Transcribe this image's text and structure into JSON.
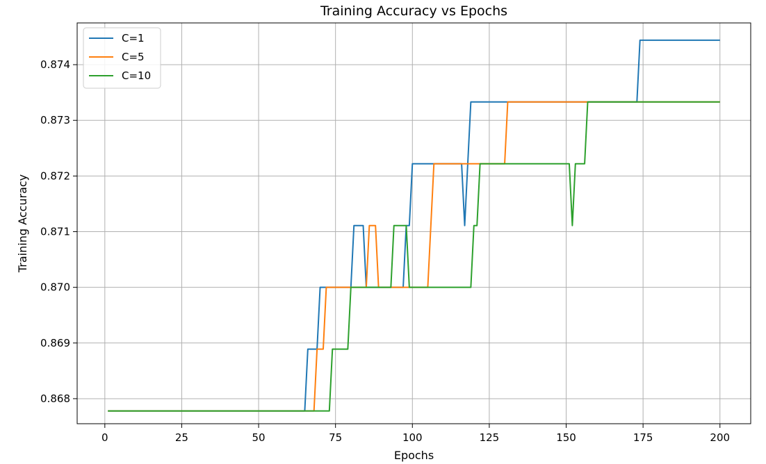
{
  "chart_data": {
    "type": "line",
    "title": "Training Accuracy vs Epochs",
    "xlabel": "Epochs",
    "ylabel": "Training Accuracy",
    "xlim": [
      -9,
      210
    ],
    "ylim": [
      0.86755,
      0.87475
    ],
    "xticks": [
      0,
      25,
      50,
      75,
      100,
      125,
      150,
      175,
      200
    ],
    "yticks": [
      0.868,
      0.869,
      0.87,
      0.871,
      0.872,
      0.873,
      0.874
    ],
    "ytick_labels": [
      "0.868",
      "0.869",
      "0.870",
      "0.871",
      "0.872",
      "0.873",
      "0.874"
    ],
    "grid": true,
    "legend_position": "top-left",
    "series": [
      {
        "name": "C=1",
        "color": "#1f77b4",
        "points": [
          [
            1,
            0.86778
          ],
          [
            65,
            0.86778
          ],
          [
            66,
            0.86889
          ],
          [
            69,
            0.86889
          ],
          [
            70,
            0.87
          ],
          [
            80,
            0.87
          ],
          [
            81,
            0.87111
          ],
          [
            84,
            0.87111
          ],
          [
            85,
            0.87
          ],
          [
            97,
            0.87
          ],
          [
            98,
            0.87111
          ],
          [
            99,
            0.87111
          ],
          [
            100,
            0.87222
          ],
          [
            116,
            0.87222
          ],
          [
            117,
            0.87111
          ],
          [
            118,
            0.87222
          ],
          [
            119,
            0.87333
          ],
          [
            173,
            0.87333
          ],
          [
            174,
            0.87444
          ],
          [
            200,
            0.87444
          ]
        ]
      },
      {
        "name": "C=5",
        "color": "#ff7f0e",
        "points": [
          [
            1,
            0.86778
          ],
          [
            68,
            0.86778
          ],
          [
            69,
            0.86889
          ],
          [
            71,
            0.86889
          ],
          [
            72,
            0.87
          ],
          [
            85,
            0.87
          ],
          [
            86,
            0.87111
          ],
          [
            88,
            0.87111
          ],
          [
            89,
            0.87
          ],
          [
            105,
            0.87
          ],
          [
            107,
            0.87222
          ],
          [
            130,
            0.87222
          ],
          [
            131,
            0.87333
          ],
          [
            200,
            0.87333
          ]
        ]
      },
      {
        "name": "C=10",
        "color": "#2ca02c",
        "points": [
          [
            1,
            0.86778
          ],
          [
            73,
            0.86778
          ],
          [
            74,
            0.86889
          ],
          [
            79,
            0.86889
          ],
          [
            80,
            0.87
          ],
          [
            93,
            0.87
          ],
          [
            94,
            0.87111
          ],
          [
            98,
            0.87111
          ],
          [
            99,
            0.87
          ],
          [
            119,
            0.87
          ],
          [
            120,
            0.87111
          ],
          [
            121,
            0.87111
          ],
          [
            122,
            0.87222
          ],
          [
            151,
            0.87222
          ],
          [
            152,
            0.87111
          ],
          [
            153,
            0.87222
          ],
          [
            156,
            0.87222
          ],
          [
            157,
            0.87333
          ],
          [
            200,
            0.87333
          ]
        ]
      }
    ]
  }
}
